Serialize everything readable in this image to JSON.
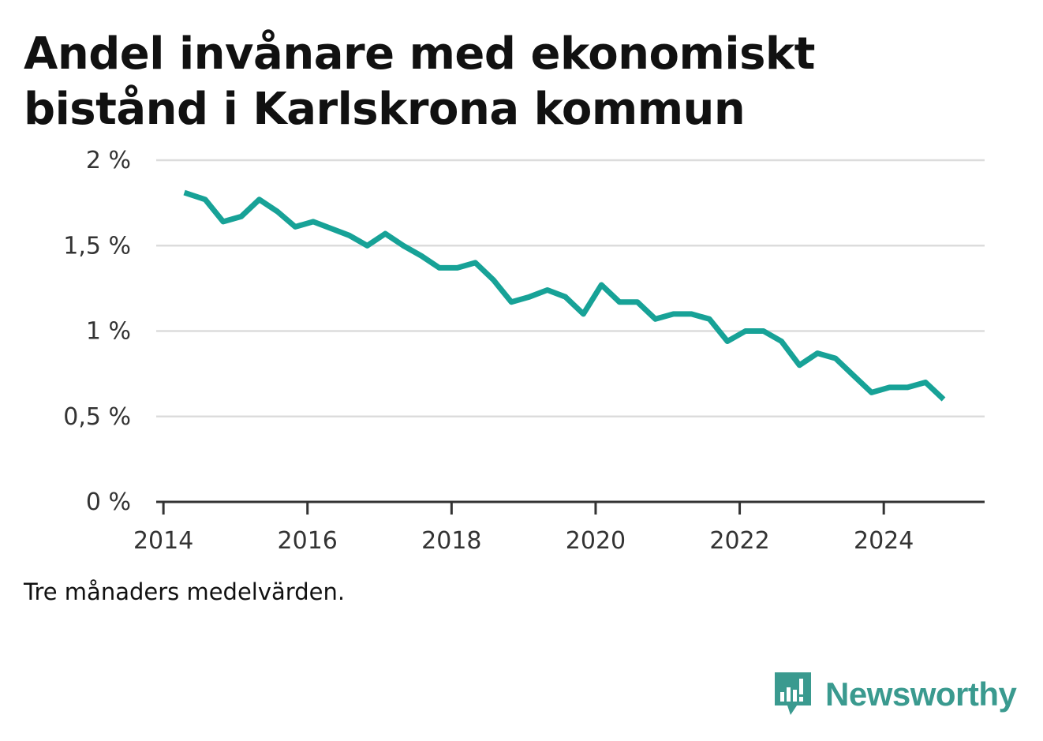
{
  "title_lines": [
    "Andel invånare med ekonomiskt",
    "bistånd i Karlskrona kommun"
  ],
  "note": "Tre månaders medelvärden.",
  "brand": {
    "name": "Newsworthy",
    "logo_icon": "newsworthy-chart-speech-bubble-icon",
    "color": "#3a9a8f"
  },
  "chart_data": {
    "type": "line",
    "title": "Andel invånare med ekonomiskt bistånd i Karlskrona kommun",
    "xlabel": "",
    "ylabel": "",
    "xlim": [
      2013.9,
      2025.4
    ],
    "ylim": [
      0,
      2
    ],
    "y_ticks": [
      0,
      0.5,
      1,
      1.5,
      2
    ],
    "y_tick_labels": [
      "0 %",
      "0,5 %",
      "1 %",
      "1,5 %",
      "2 %"
    ],
    "x_ticks": [
      2014,
      2016,
      2018,
      2020,
      2022,
      2024
    ],
    "x_tick_labels": [
      "2014",
      "2016",
      "2018",
      "2020",
      "2022",
      "2024"
    ],
    "grid": true,
    "line_color": "#17a297",
    "series": [
      {
        "x": [
          2014.29,
          2014.58,
          2014.83,
          2015.08,
          2015.33,
          2015.58,
          2015.83,
          2016.08,
          2016.33,
          2016.58,
          2016.83,
          2017.08,
          2017.33,
          2017.58,
          2017.83,
          2018.08,
          2018.33,
          2018.58,
          2018.83,
          2019.08,
          2019.33,
          2019.58,
          2019.83,
          2020.08,
          2020.33,
          2020.58,
          2020.83,
          2021.08,
          2021.33,
          2021.58,
          2021.83,
          2022.08,
          2022.33,
          2022.58,
          2022.83,
          2023.08,
          2023.33,
          2023.58,
          2023.83,
          2024.08,
          2024.33,
          2024.58,
          2024.83
        ],
        "values": [
          1.81,
          1.77,
          1.64,
          1.67,
          1.77,
          1.7,
          1.61,
          1.64,
          1.6,
          1.56,
          1.5,
          1.57,
          1.5,
          1.44,
          1.37,
          1.37,
          1.4,
          1.3,
          1.17,
          1.2,
          1.24,
          1.2,
          1.1,
          1.27,
          1.17,
          1.17,
          1.07,
          1.1,
          1.1,
          1.07,
          0.94,
          1.0,
          1.0,
          0.94,
          0.8,
          0.87,
          0.84,
          0.74,
          0.64,
          0.67,
          0.67,
          0.7,
          0.6
        ]
      }
    ]
  }
}
